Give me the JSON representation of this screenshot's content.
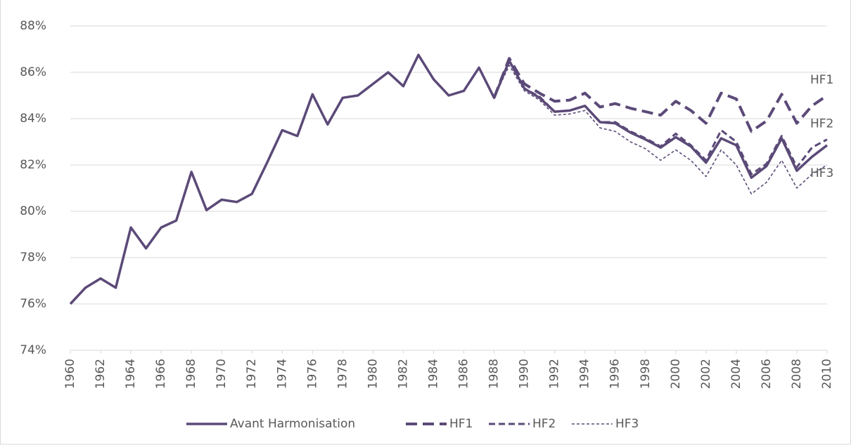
{
  "chart_data": {
    "type": "line",
    "x": [
      1960,
      1961,
      1962,
      1963,
      1964,
      1965,
      1966,
      1967,
      1968,
      1969,
      1970,
      1971,
      1972,
      1973,
      1974,
      1975,
      1976,
      1977,
      1978,
      1979,
      1980,
      1981,
      1982,
      1983,
      1984,
      1985,
      1986,
      1987,
      1988,
      1989,
      1990,
      1991,
      1992,
      1993,
      1994,
      1995,
      1996,
      1997,
      1998,
      1999,
      2000,
      2001,
      2002,
      2003,
      2004,
      2005,
      2006,
      2007,
      2008,
      2009,
      2010
    ],
    "xlim": [
      1960,
      2010
    ],
    "xticks": [
      1960,
      1962,
      1964,
      1966,
      1968,
      1970,
      1972,
      1974,
      1976,
      1978,
      1980,
      1982,
      1984,
      1986,
      1988,
      1990,
      1992,
      1994,
      1996,
      1998,
      2000,
      2002,
      2004,
      2006,
      2008,
      2010
    ],
    "ylim": [
      74,
      88
    ],
    "yticks": [
      {
        "value": 74,
        "label": "74%"
      },
      {
        "value": 76,
        "label": "76%"
      },
      {
        "value": 78,
        "label": "78%"
      },
      {
        "value": 80,
        "label": "80%"
      },
      {
        "value": 82,
        "label": "82%"
      },
      {
        "value": 84,
        "label": "84%"
      },
      {
        "value": 86,
        "label": "86%"
      },
      {
        "value": 88,
        "label": "88%"
      }
    ],
    "grid": true,
    "legend": "bottom",
    "series": [
      {
        "name": "Avant Harmonisation",
        "color": "#5b4a78",
        "width": 3.5,
        "dash": "none",
        "values": [
          76.0,
          76.7,
          77.1,
          76.7,
          79.3,
          78.4,
          79.3,
          79.6,
          81.7,
          80.05,
          80.5,
          80.4,
          80.75,
          82.1,
          83.5,
          83.25,
          85.05,
          83.75,
          84.9,
          85.0,
          85.5,
          86.0,
          85.4,
          86.75,
          85.7,
          85.0,
          85.2,
          86.2,
          84.9,
          86.5,
          85.3,
          84.9,
          84.3,
          84.35,
          84.55,
          83.85,
          83.8,
          83.4,
          83.1,
          82.75,
          83.2,
          82.8,
          82.1,
          83.15,
          82.85,
          81.45,
          81.95,
          83.15,
          81.75,
          82.35,
          82.85
        ]
      },
      {
        "name": "HF1",
        "color": "#5b4a78",
        "width": 4,
        "dash": "16,8",
        "values": [
          null,
          null,
          null,
          null,
          null,
          null,
          null,
          null,
          null,
          null,
          null,
          null,
          null,
          null,
          null,
          null,
          null,
          null,
          null,
          null,
          null,
          null,
          null,
          null,
          null,
          null,
          null,
          null,
          84.9,
          86.6,
          85.5,
          85.1,
          84.75,
          84.8,
          85.1,
          84.5,
          84.65,
          84.45,
          84.3,
          84.15,
          84.75,
          84.35,
          83.8,
          85.1,
          84.85,
          83.45,
          83.9,
          85.05,
          83.8,
          84.55,
          85.0
        ]
      },
      {
        "name": "HF2",
        "color": "#5b4a78",
        "width": 3,
        "dash": "9,5",
        "values": [
          null,
          null,
          null,
          null,
          null,
          null,
          null,
          null,
          null,
          null,
          null,
          null,
          null,
          null,
          null,
          null,
          null,
          null,
          null,
          null,
          null,
          null,
          null,
          null,
          null,
          null,
          null,
          null,
          84.9,
          86.5,
          85.3,
          84.95,
          84.3,
          84.35,
          84.55,
          83.85,
          83.85,
          83.45,
          83.15,
          82.8,
          83.35,
          82.85,
          82.2,
          83.5,
          83.0,
          81.6,
          82.05,
          83.25,
          81.9,
          82.75,
          83.1
        ]
      },
      {
        "name": "HF3",
        "color": "#5b4a78",
        "width": 1.6,
        "dash": "4,3",
        "values": [
          null,
          null,
          null,
          null,
          null,
          null,
          null,
          null,
          null,
          null,
          null,
          null,
          null,
          null,
          null,
          null,
          null,
          null,
          null,
          null,
          null,
          null,
          null,
          null,
          null,
          null,
          null,
          null,
          84.9,
          86.3,
          85.2,
          84.8,
          84.15,
          84.2,
          84.35,
          83.6,
          83.45,
          83.0,
          82.7,
          82.2,
          82.65,
          82.2,
          81.5,
          82.65,
          82.0,
          80.75,
          81.25,
          82.2,
          81.0,
          81.6,
          82.0
        ]
      }
    ],
    "end_labels": [
      "HF1",
      "HF2",
      "HF3"
    ]
  }
}
